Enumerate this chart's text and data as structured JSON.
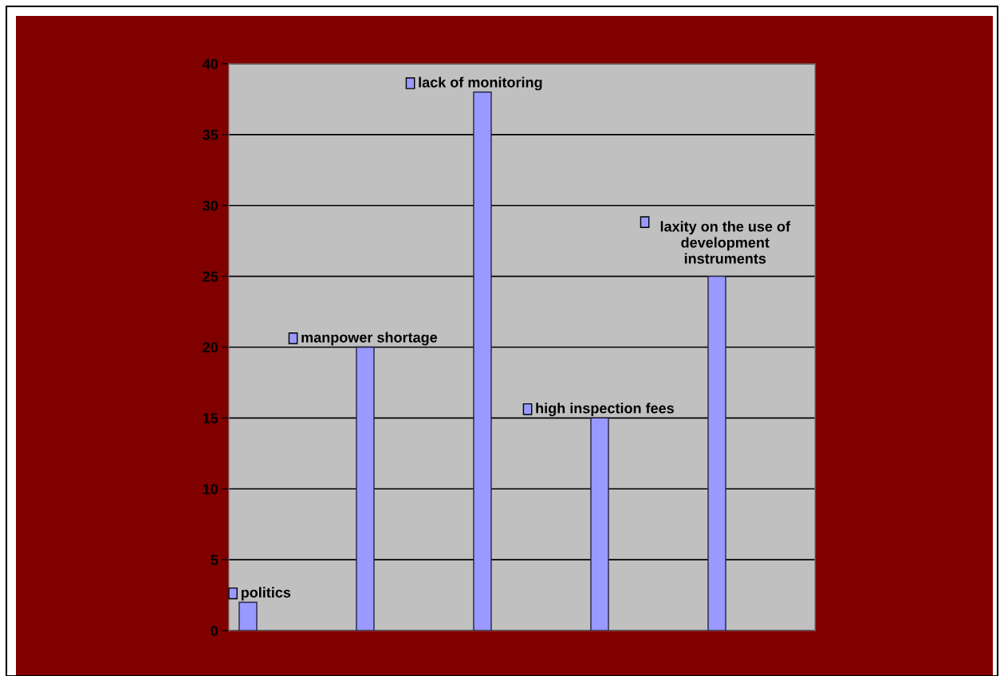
{
  "chart_data": {
    "type": "bar",
    "categories": [
      "politics",
      "manpower shortage",
      "lack of monitoring",
      "high inspection fees",
      "laxity on the use of development instruments"
    ],
    "values": [
      2,
      20,
      38,
      15,
      25
    ],
    "color": "#9999ff",
    "ylim": [
      0,
      40
    ],
    "yticks": [
      0,
      5,
      10,
      15,
      20,
      25,
      30,
      35,
      40
    ],
    "grid": "y",
    "tick_labels": "y"
  }
}
